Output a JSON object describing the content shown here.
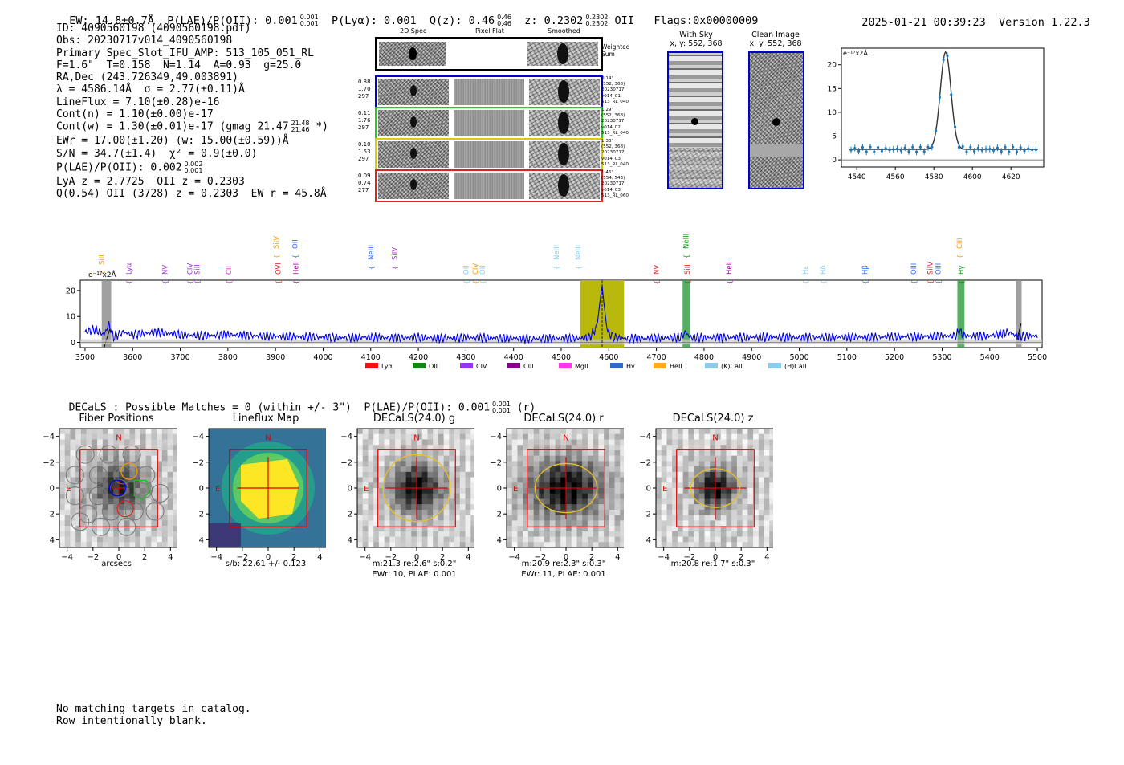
{
  "header": {
    "ew": "EW: 14.8±0.7Å",
    "plae": "P(LAE)/P(OII): 0.001",
    "plae_sup": "0.001",
    "plae_sub": "0.001",
    "plya": "P(Lyα): 0.001",
    "qz": "Q(z): 0.46",
    "qz_sup": "0.46",
    "qz_sub": "0.46",
    "z": "z: 0.2302",
    "z_sup": "0.2302",
    "z_sub": "0.2302",
    "z_line": "OII",
    "flags": "Flags:0x00000009",
    "datetime": "2025-01-21 00:39:23",
    "version": "Version 1.22.3"
  },
  "info": {
    "line1": "ID: 4090560198 (4090560198.pdf)",
    "line2": "Obs: 20230717v014_4090560198",
    "line3": "Primary Spec_Slot_IFU_AMP: 513_105_051_RL",
    "line4": "F=1.6\"  T=0.158  N=1.14  A=0.93  g=25.0",
    "line5": "RA,Dec (243.726349,49.003891)",
    "line6": "λ = 4586.14Å  σ = 2.77(±0.11)Å",
    "line7": "LineFlux = 7.10(±0.28)e-16",
    "line8": "Cont(n) = 1.10(±0.00)e-17",
    "line9": "Cont(w) = 1.30(±0.01)e-17 (gmag 21.47",
    "line9_sup": "21.48",
    "line9_sub": "21.46",
    "line9_end": " *)",
    "line10": "EWr = 17.00(±1.20) (w: 15.00(±0.59))Å",
    "line11": "S/N = 34.7(±1.4)  χ² = 0.9(±0.0)",
    "line12": "P(LAE)/P(OII): 0.002",
    "line12_sup": "0.002",
    "line12_sub": "0.001",
    "line13": "LyA z = 2.7725  OII z = 0.2303",
    "line14": "Q(0.54) OII (3728) z = 0.2303  EW r = 45.8Å"
  },
  "cutouts": {
    "col_2d": "2D Spec",
    "col_flat": "Pixel Flat",
    "col_smooth": "Smoothed",
    "weighted_sum": "Weighted Sum",
    "rows": [
      {
        "left": [
          "0.38",
          "1.70",
          "297"
        ],
        "right": [
          "0.14\"",
          "(552, 368)",
          "20230717",
          "v014_01",
          "513_RL_040"
        ],
        "color": "#0000cc"
      },
      {
        "left": [
          "0.11",
          "1.76",
          "297"
        ],
        "right": [
          "1.29\"",
          "(552, 368)",
          "20230717",
          "v014_02",
          "513_RL_040"
        ],
        "color": "#22cc22"
      },
      {
        "left": [
          "0.10",
          "1.53",
          "297"
        ],
        "right": [
          "1.33\"",
          "(552, 368)",
          "20230717",
          "v014_03",
          "513_RL_040"
        ],
        "color": "#ddcc00"
      },
      {
        "left": [
          "0.09",
          "0.74",
          "277"
        ],
        "right": [
          "1.46\"",
          "(554, 543)",
          "20230717",
          "v014_03",
          "513_RL_060"
        ],
        "color": "#dd2222"
      }
    ]
  },
  "sky": {
    "with_sky": "With Sky",
    "with_sky_xy": "x, y: 552, 368",
    "clean": "Clean Image",
    "clean_xy": "x, y: 552, 368"
  },
  "zoom_plot": {
    "ylabel": "e⁻¹⁷x2Å",
    "x_ticks": [
      "4540",
      "4560",
      "4580",
      "4600",
      "4620"
    ],
    "y_ticks": [
      "0",
      "5",
      "10",
      "15",
      "20"
    ]
  },
  "chart_data": {
    "type": "line",
    "title": "",
    "ylabel": "e⁻¹⁷x2Å",
    "xlim": [
      3490,
      5510
    ],
    "ylim": [
      -2,
      24
    ],
    "x_ticks": [
      3500,
      3600,
      3700,
      3800,
      3900,
      4000,
      4100,
      4200,
      4300,
      4400,
      4500,
      4600,
      4700,
      4800,
      4900,
      5000,
      5100,
      5200,
      5300,
      5400,
      5500
    ],
    "y_ticks": [
      0,
      10,
      20
    ],
    "series": [
      {
        "color": "#0000dd",
        "x": [
          3500,
          3520,
          3540,
          3550,
          3560,
          3580,
          3600,
          3650,
          3700,
          3750,
          3800,
          3850,
          3900,
          3950,
          4000,
          4050,
          4100,
          4150,
          4200,
          4250,
          4300,
          4350,
          4400,
          4450,
          4500,
          4540,
          4560,
          4575,
          4583,
          4586,
          4589,
          4597,
          4610,
          4630,
          4660,
          4700,
          4750,
          4762,
          4770,
          4800,
          4850,
          4900,
          4950,
          5000,
          5050,
          5100,
          5150,
          5200,
          5250,
          5300,
          5330,
          5336,
          5342,
          5360,
          5400,
          5440,
          5460,
          5500
        ],
        "values": [
          4,
          5,
          3,
          7,
          2,
          4,
          3,
          4,
          3,
          2.5,
          3,
          2.6,
          2.4,
          2.2,
          2,
          1.8,
          2,
          1.7,
          1.9,
          1.6,
          1.8,
          1.7,
          1.6,
          1.4,
          1.5,
          1.6,
          2,
          6,
          18,
          22,
          16,
          4,
          2,
          1.6,
          1.5,
          1.7,
          1.8,
          4,
          2,
          1.8,
          1.9,
          2,
          2,
          1.8,
          2,
          2.1,
          2,
          2.2,
          2.3,
          2.4,
          2.6,
          5,
          3,
          2.4,
          2.5,
          4,
          2.2,
          2.6
        ]
      }
    ],
    "line_labels": [
      {
        "x": 3535,
        "label": "SiII",
        "color": "#ff9900",
        "row": 3
      },
      {
        "x": 3592,
        "label": "Lyα",
        "color": "#9933cc",
        "row": 2
      },
      {
        "x": 3668,
        "label": "NV",
        "color": "#9933cc",
        "row": 2
      },
      {
        "x": 3720,
        "label": "CIV",
        "color": "#9933cc",
        "row": 2
      },
      {
        "x": 3735,
        "label": "SiII",
        "color": "#9933cc",
        "row": 2
      },
      {
        "x": 3802,
        "label": "CII",
        "color": "#cc33cc",
        "row": 2
      },
      {
        "x": 3901,
        "label": "SiIV",
        "color": "#ff9900",
        "row": 0
      },
      {
        "x": 3906,
        "label": "OVI",
        "color": "#dd2222",
        "row": 2
      },
      {
        "x": 3941,
        "label": "OII",
        "color": "#3366ff",
        "row": 0
      },
      {
        "x": 3943,
        "label": "HeII",
        "color": "#990099",
        "row": 2
      },
      {
        "x": 4100,
        "label": "NeIII",
        "color": "#3366ff",
        "row": 1
      },
      {
        "x": 4150,
        "label": "SiIV",
        "color": "#9933cc",
        "row": 1
      },
      {
        "x": 4300,
        "label": "OII",
        "color": "#88ccee",
        "row": 2
      },
      {
        "x": 4320,
        "label": "CIV",
        "color": "#ff9900",
        "row": 2
      },
      {
        "x": 4335,
        "label": "OII",
        "color": "#88ccee",
        "row": 2
      },
      {
        "x": 4490,
        "label": "NeIII",
        "color": "#88ccee",
        "row": 1
      },
      {
        "x": 4535,
        "label": "NeIII",
        "color": "#88ccee",
        "row": 1
      },
      {
        "x": 4700,
        "label": "NV",
        "color": "#dd2222",
        "row": 2
      },
      {
        "x": 4762,
        "label": "NeIII",
        "color": "#009900",
        "row": 0
      },
      {
        "x": 4765,
        "label": "SiII",
        "color": "#dd2222",
        "row": 2
      },
      {
        "x": 4852,
        "label": "HeII",
        "color": "#990099",
        "row": 2
      },
      {
        "x": 5013,
        "label": "Hε",
        "color": "#88ccee",
        "row": 2
      },
      {
        "x": 5050,
        "label": "Hδ",
        "color": "#88ccee",
        "row": 2
      },
      {
        "x": 5138,
        "label": "Hβ",
        "color": "#3366ff",
        "row": 2
      },
      {
        "x": 5240,
        "label": "OIII",
        "color": "#3366ff",
        "row": 2
      },
      {
        "x": 5275,
        "label": "SiIV",
        "color": "#dd2222",
        "row": 2
      },
      {
        "x": 5292,
        "label": "OIII",
        "color": "#3366ff",
        "row": 2
      },
      {
        "x": 5336,
        "label": "CIII",
        "color": "#ff9900",
        "row": 0
      },
      {
        "x": 5340,
        "label": "Hγ",
        "color": "#009900",
        "row": 2
      }
    ],
    "legend": [
      {
        "label": "Lyα",
        "color": "#ee1111"
      },
      {
        "label": "OII",
        "color": "#118811"
      },
      {
        "label": "CIV",
        "color": "#9933ee"
      },
      {
        "label": "CIII",
        "color": "#880088"
      },
      {
        "label": "MgII",
        "color": "#ff33ff"
      },
      {
        "label": "Hγ",
        "color": "#3366dd"
      },
      {
        "label": "HeII",
        "color": "#ffaa22"
      },
      {
        "label": "(K)CaII",
        "color": "#88ccee"
      },
      {
        "label": "(H)CaII",
        "color": "#88ccee"
      }
    ]
  },
  "decals": {
    "summary": "DECaLS : Possible Matches = 0 (within +/- 3\")  P(LAE)/P(OII): 0.001",
    "summary_sup": "0.001",
    "summary_sub": "0.001",
    "summary_end": "(r)",
    "panels": [
      {
        "title": "Fiber Positions",
        "caption1": "arcsecs",
        "caption2": ""
      },
      {
        "title": "Lineflux Map",
        "caption1": "s/b: 22.61 +/- 0.123",
        "caption2": ""
      },
      {
        "title": "DECaLS(24.0) g",
        "caption1": "m:21.3  re:2.6\"  s:0.2\"",
        "caption2": "EWr: 10, PLAE: 0.001"
      },
      {
        "title": "DECaLS(24.0) r",
        "caption1": "m:20.9  re:2.3\"  s:0.3\"",
        "caption2": "EWr: 11, PLAE: 0.001"
      },
      {
        "title": "DECaLS(24.0) z",
        "caption1": "m:20.8  re:1.7\"  s:0.3\"",
        "caption2": ""
      }
    ],
    "ticks": [
      "−4",
      "−2",
      "0",
      "2",
      "4"
    ],
    "north": "N",
    "east": "E"
  },
  "footer": {
    "line1": "No matching targets in catalog.",
    "line2": "Row intentionally blank."
  }
}
